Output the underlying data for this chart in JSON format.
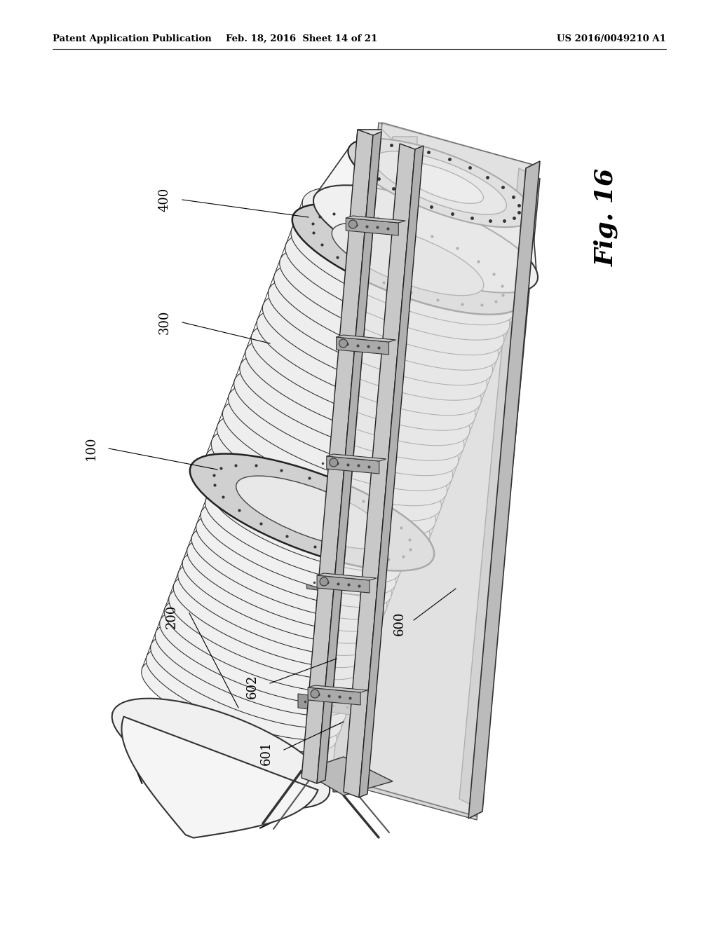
{
  "background_color": "#ffffff",
  "header_left": "Patent Application Publication",
  "header_middle": "Feb. 18, 2016  Sheet 14 of 21",
  "header_right": "US 2016/0049210 A1",
  "fig_label": "Fig. 16",
  "label_fontsize": 13,
  "header_fontsize": 9.5,
  "fig_label_fontsize": 26
}
